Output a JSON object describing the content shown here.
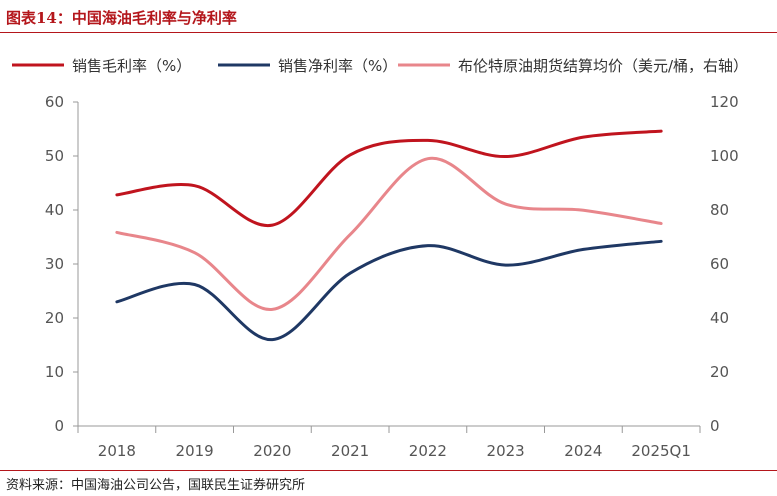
{
  "header": {
    "title": "图表14：中国海油毛利率与净利率"
  },
  "footer": {
    "source": "资料来源：中国海油公司公告，国联民生证券研究所"
  },
  "chart_data": {
    "type": "line",
    "title": "图表14：中国海油毛利率与净利率",
    "categories": [
      "2018",
      "2019",
      "2020",
      "2021",
      "2022",
      "2023",
      "2024",
      "2025Q1"
    ],
    "series": [
      {
        "name": "销售毛利率（%）",
        "axis": "left",
        "color": "#c0141e",
        "values": [
          42.8,
          44.5,
          37.2,
          50.2,
          52.9,
          49.9,
          53.5,
          54.6
        ]
      },
      {
        "name": "销售净利率（%）",
        "axis": "left",
        "color": "#1f3864",
        "values": [
          23.0,
          26.2,
          16.0,
          28.3,
          33.4,
          29.8,
          32.7,
          34.2
        ]
      },
      {
        "name": "布伦特原油期货结算均价（美元/桶，右轴）",
        "axis": "right",
        "color": "#e8868b",
        "values": [
          71.7,
          64.2,
          43.2,
          70.9,
          99.0,
          82.2,
          79.9,
          75.0
        ]
      }
    ],
    "y_left": {
      "min": 0,
      "max": 60,
      "ticks": [
        "0",
        "10",
        "20",
        "30",
        "40",
        "50",
        "60"
      ]
    },
    "y_right": {
      "min": 0,
      "max": 120,
      "ticks": [
        "0",
        "20",
        "40",
        "60",
        "80",
        "100",
        "120"
      ]
    },
    "grid": false,
    "legend": "top"
  }
}
